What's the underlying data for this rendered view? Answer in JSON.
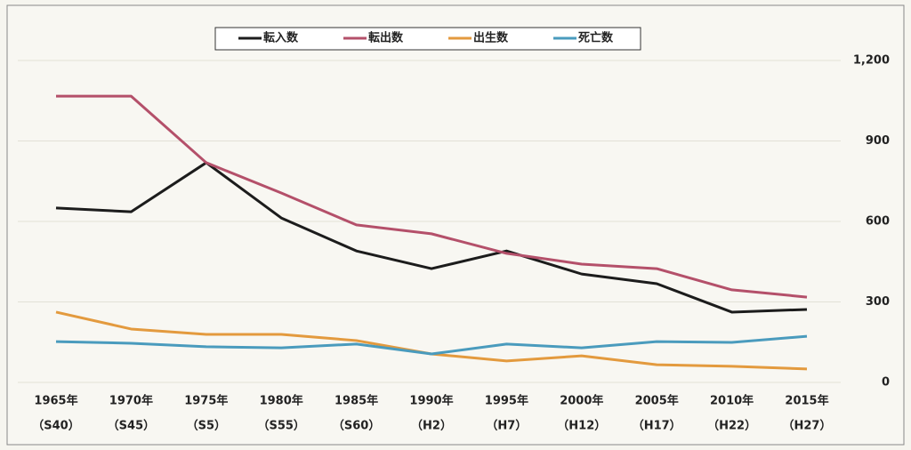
{
  "chart_data": {
    "type": "line",
    "categories": [
      "1965年",
      "1970年",
      "1975年",
      "1980年",
      "1985年",
      "1990年",
      "1995年",
      "2000年",
      "2005年",
      "2010年",
      "2015年"
    ],
    "category_sublabels": [
      "（S40）",
      "（S45）",
      "（S5）",
      "（S55）",
      "（S60）",
      "（H2）",
      "（H7）",
      "（H12）",
      "（H17）",
      "（H22）",
      "（H27）"
    ],
    "series": [
      {
        "name": "転入数",
        "color": "#1c1c1c",
        "values": [
          650,
          636,
          819,
          613,
          490,
          424,
          490,
          404,
          368,
          262,
          272
        ]
      },
      {
        "name": "転出数",
        "color": "#b4506a",
        "values": [
          1067,
          1067,
          819,
          706,
          587,
          554,
          481,
          441,
          424,
          345,
          318
        ]
      },
      {
        "name": "出生数",
        "color": "#e39a3e",
        "values": [
          262,
          199,
          179,
          179,
          156,
          106,
          80,
          99,
          66,
          60,
          50
        ]
      },
      {
        "name": "死亡数",
        "color": "#4a9bbd",
        "values": [
          152,
          146,
          133,
          129,
          143,
          106,
          143,
          129,
          152,
          149,
          172
        ]
      }
    ],
    "ylim": [
      0,
      1200
    ],
    "yticks": [
      0,
      300,
      600,
      900,
      {
        "value": 1200,
        "label": "1,200"
      }
    ],
    "grid": true
  }
}
